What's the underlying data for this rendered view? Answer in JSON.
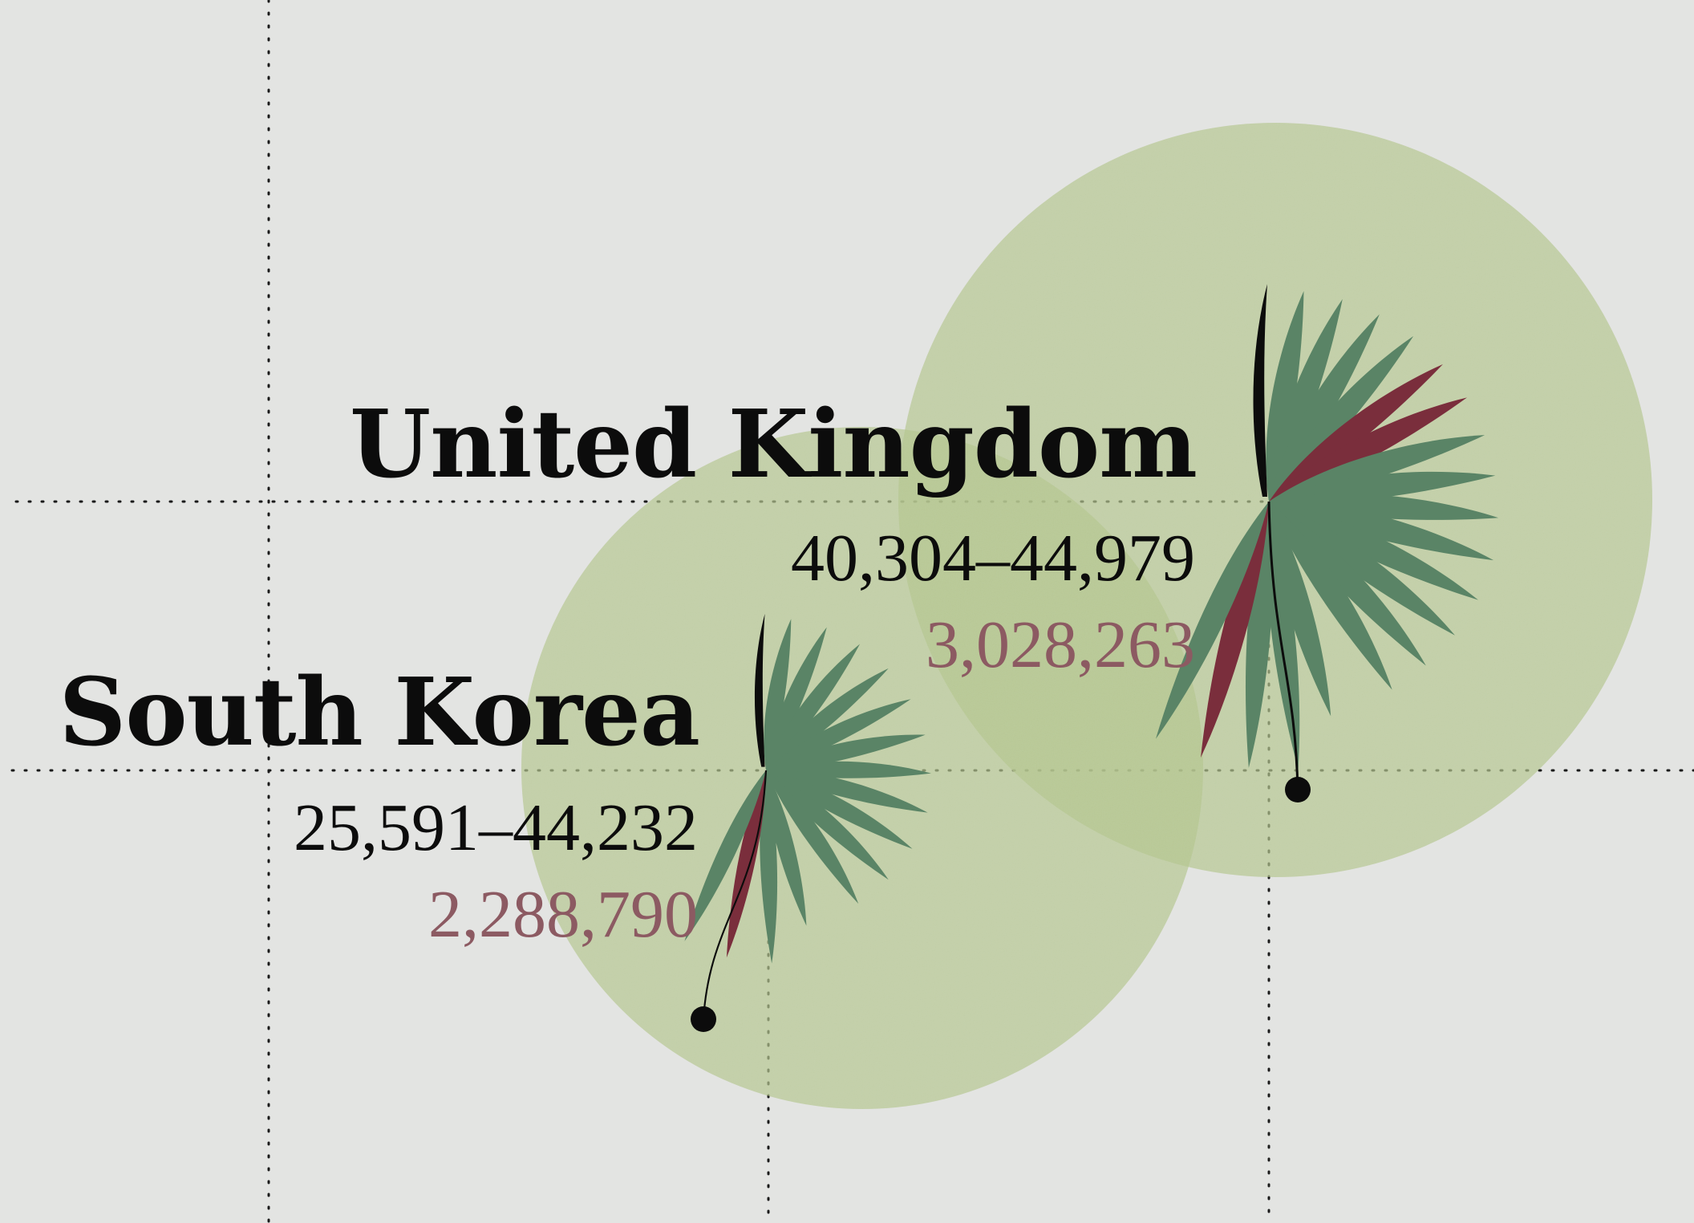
{
  "colors": {
    "background": "#e3e4e2",
    "circle_fill": "#b6c78f",
    "petal_green": "#5a8466",
    "petal_red": "#7a2e3c",
    "petal_black": "#0c0c0c",
    "count_text": "#8c5a62",
    "grid_line": "#1a1a1a"
  },
  "chart_data": {
    "type": "glyph",
    "grid": true,
    "items": [
      {
        "country": "United Kingdom",
        "range": "40,304–44,979",
        "count": "3,028,263",
        "petals": {
          "green": 16,
          "red": 3,
          "black": 1
        }
      },
      {
        "country": "South Korea",
        "range": "25,591–44,232",
        "count": "2,288,790",
        "petals": {
          "green": 14,
          "red": 1,
          "black": 1
        }
      }
    ]
  }
}
